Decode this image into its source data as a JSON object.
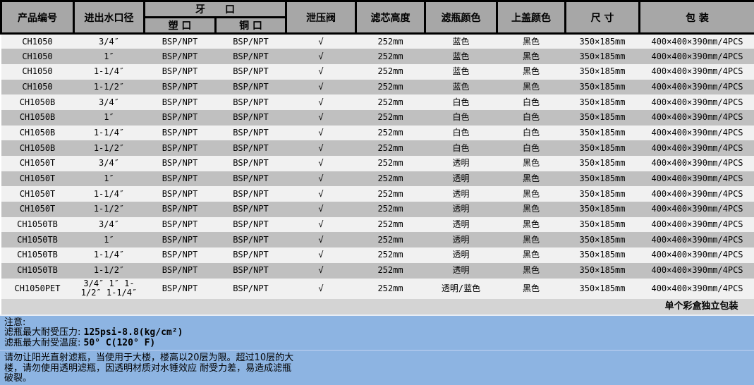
{
  "table": {
    "headers": {
      "product_no": "产品编号",
      "port_size": "进出水口径",
      "thread_group": "牙　　口",
      "plastic_port": "塑 口",
      "brass_port": "铜 口",
      "relief_valve": "泄压阀",
      "cartridge_height": "滤芯高度",
      "housing_color": "滤瓶颜色",
      "cap_color": "上盖颜色",
      "size": "尺  寸",
      "packing": "包  装"
    },
    "rows": [
      {
        "model": "CH1050",
        "port": "3/4″",
        "plastic": "BSP/NPT",
        "brass": "BSP/NPT",
        "valve": "√",
        "height": "252mm",
        "housing": "蓝色",
        "cap": "黑色",
        "size": "350×185mm",
        "packing": "400×400×390mm/4PCS"
      },
      {
        "model": "CH1050",
        "port": "1″",
        "plastic": "BSP/NPT",
        "brass": "BSP/NPT",
        "valve": "√",
        "height": "252mm",
        "housing": "蓝色",
        "cap": "黑色",
        "size": "350×185mm",
        "packing": "400×400×390mm/4PCS"
      },
      {
        "model": "CH1050",
        "port": "1-1/4″",
        "plastic": "BSP/NPT",
        "brass": "BSP/NPT",
        "valve": "√",
        "height": "252mm",
        "housing": "蓝色",
        "cap": "黑色",
        "size": "350×185mm",
        "packing": "400×400×390mm/4PCS"
      },
      {
        "model": "CH1050",
        "port": "1-1/2″",
        "plastic": "BSP/NPT",
        "brass": "BSP/NPT",
        "valve": "√",
        "height": "252mm",
        "housing": "蓝色",
        "cap": "黑色",
        "size": "350×185mm",
        "packing": "400×400×390mm/4PCS"
      },
      {
        "model": "CH1050B",
        "port": "3/4″",
        "plastic": "BSP/NPT",
        "brass": "BSP/NPT",
        "valve": "√",
        "height": "252mm",
        "housing": "白色",
        "cap": "白色",
        "size": "350×185mm",
        "packing": "400×400×390mm/4PCS"
      },
      {
        "model": "CH1050B",
        "port": "1″",
        "plastic": "BSP/NPT",
        "brass": "BSP/NPT",
        "valve": "√",
        "height": "252mm",
        "housing": "白色",
        "cap": "白色",
        "size": "350×185mm",
        "packing": "400×400×390mm/4PCS"
      },
      {
        "model": "CH1050B",
        "port": "1-1/4″",
        "plastic": "BSP/NPT",
        "brass": "BSP/NPT",
        "valve": "√",
        "height": "252mm",
        "housing": "白色",
        "cap": "白色",
        "size": "350×185mm",
        "packing": "400×400×390mm/4PCS"
      },
      {
        "model": "CH1050B",
        "port": "1-1/2″",
        "plastic": "BSP/NPT",
        "brass": "BSP/NPT",
        "valve": "√",
        "height": "252mm",
        "housing": "白色",
        "cap": "白色",
        "size": "350×185mm",
        "packing": "400×400×390mm/4PCS"
      },
      {
        "model": "CH1050T",
        "port": "3/4″",
        "plastic": "BSP/NPT",
        "brass": "BSP/NPT",
        "valve": "√",
        "height": "252mm",
        "housing": "透明",
        "cap": "黑色",
        "size": "350×185mm",
        "packing": "400×400×390mm/4PCS"
      },
      {
        "model": "CH1050T",
        "port": "1″",
        "plastic": "BSP/NPT",
        "brass": "BSP/NPT",
        "valve": "√",
        "height": "252mm",
        "housing": "透明",
        "cap": "黑色",
        "size": "350×185mm",
        "packing": "400×400×390mm/4PCS"
      },
      {
        "model": "CH1050T",
        "port": "1-1/4″",
        "plastic": "BSP/NPT",
        "brass": "BSP/NPT",
        "valve": "√",
        "height": "252mm",
        "housing": "透明",
        "cap": "黑色",
        "size": "350×185mm",
        "packing": "400×400×390mm/4PCS"
      },
      {
        "model": "CH1050T",
        "port": "1-1/2″",
        "plastic": "BSP/NPT",
        "brass": "BSP/NPT",
        "valve": "√",
        "height": "252mm",
        "housing": "透明",
        "cap": "黑色",
        "size": "350×185mm",
        "packing": "400×400×390mm/4PCS"
      },
      {
        "model": "CH1050TB",
        "port": "3/4″",
        "plastic": "BSP/NPT",
        "brass": "BSP/NPT",
        "valve": "√",
        "height": "252mm",
        "housing": "透明",
        "cap": "黑色",
        "size": "350×185mm",
        "packing": "400×400×390mm/4PCS"
      },
      {
        "model": "CH1050TB",
        "port": "1″",
        "plastic": "BSP/NPT",
        "brass": "BSP/NPT",
        "valve": "√",
        "height": "252mm",
        "housing": "透明",
        "cap": "黑色",
        "size": "350×185mm",
        "packing": "400×400×390mm/4PCS"
      },
      {
        "model": "CH1050TB",
        "port": "1-1/4″",
        "plastic": "BSP/NPT",
        "brass": "BSP/NPT",
        "valve": "√",
        "height": "252mm",
        "housing": "透明",
        "cap": "黑色",
        "size": "350×185mm",
        "packing": "400×400×390mm/4PCS"
      },
      {
        "model": "CH1050TB",
        "port": "1-1/2″",
        "plastic": "BSP/NPT",
        "brass": "BSP/NPT",
        "valve": "√",
        "height": "252mm",
        "housing": "透明",
        "cap": "黑色",
        "size": "350×185mm",
        "packing": "400×400×390mm/4PCS"
      },
      {
        "model": "CH1050PET",
        "port": "3/4″ 1″ 1-1/2″ 1-1/4″",
        "plastic": "BSP/NPT",
        "brass": "BSP/NPT",
        "valve": "√",
        "height": "252mm",
        "housing": "透明/蓝色",
        "cap": "黑色",
        "size": "350×185mm",
        "packing": "400×400×390mm/4PCS"
      }
    ],
    "footer_note": "单个彩盒独立包装"
  },
  "notes": {
    "title": "注意:",
    "lines": [
      {
        "label": "滤瓶最大耐受压力: ",
        "value": "125psi-8.8(kg/cm²)"
      },
      {
        "label": "滤瓶最大耐受温度: ",
        "value": "50° C(120° F)"
      }
    ],
    "paragraph": "请勿让阳光直射滤瓶，当使用于大楼，楼高以20层为限。超过10层的大楼，请勿使用透明滤瓶，因透明材质对水锤效应 耐受力差，易造成滤瓶破裂。"
  },
  "colors": {
    "header_bg": "#a7a7a7",
    "row_light": "#f1f1f1",
    "row_dark": "#c0c0c0",
    "footer_bg": "#d4d4d4",
    "notes_bg": "#8db4e2",
    "border": "#000000"
  }
}
